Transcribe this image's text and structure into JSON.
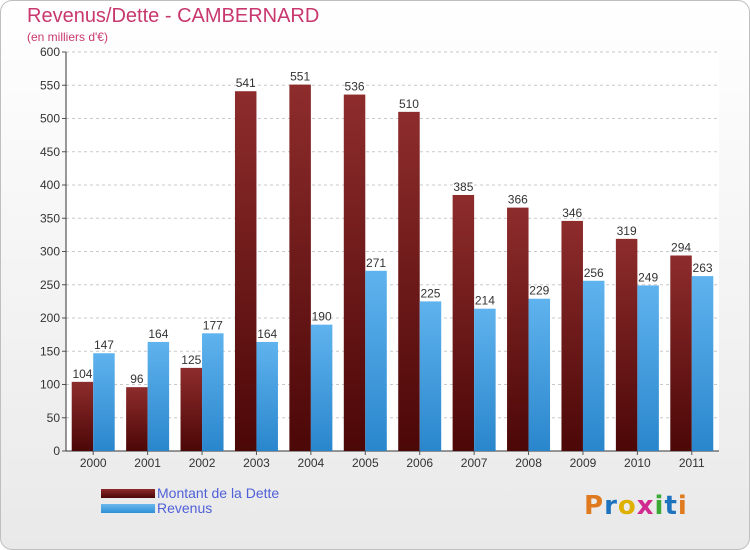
{
  "chart_data": {
    "type": "bar",
    "title": "Revenus/Dette - CAMBERNARD",
    "subtitle": "(en milliers d'€)",
    "categories": [
      "2000",
      "2001",
      "2002",
      "2003",
      "2004",
      "2005",
      "2006",
      "2007",
      "2008",
      "2009",
      "2010",
      "2011"
    ],
    "series": [
      {
        "name": "Montant de la Dette",
        "color": "#7a1a1a",
        "values": [
          104,
          96,
          125,
          541,
          551,
          536,
          510,
          385,
          366,
          346,
          319,
          294
        ]
      },
      {
        "name": "Revenus",
        "color": "#4aa3e6",
        "values": [
          147,
          164,
          177,
          164,
          190,
          271,
          225,
          214,
          229,
          256,
          249,
          263
        ]
      }
    ],
    "ylim": [
      0,
      600
    ],
    "yticks": [
      0,
      50,
      100,
      150,
      200,
      250,
      300,
      350,
      400,
      450,
      500,
      550,
      600
    ],
    "grid": true,
    "legend": "bottom-left"
  },
  "legend": {
    "debt_label": "Montant de la Dette",
    "revenue_label": "Revenus"
  },
  "logo": {
    "letters": [
      "P",
      "r",
      "o",
      "x",
      "i",
      "t",
      "i"
    ],
    "colors": [
      "#e07a1f",
      "#1e73be",
      "#e0b000",
      "#d12b8f",
      "#3aa935",
      "#1e73be",
      "#e07a1f"
    ]
  }
}
